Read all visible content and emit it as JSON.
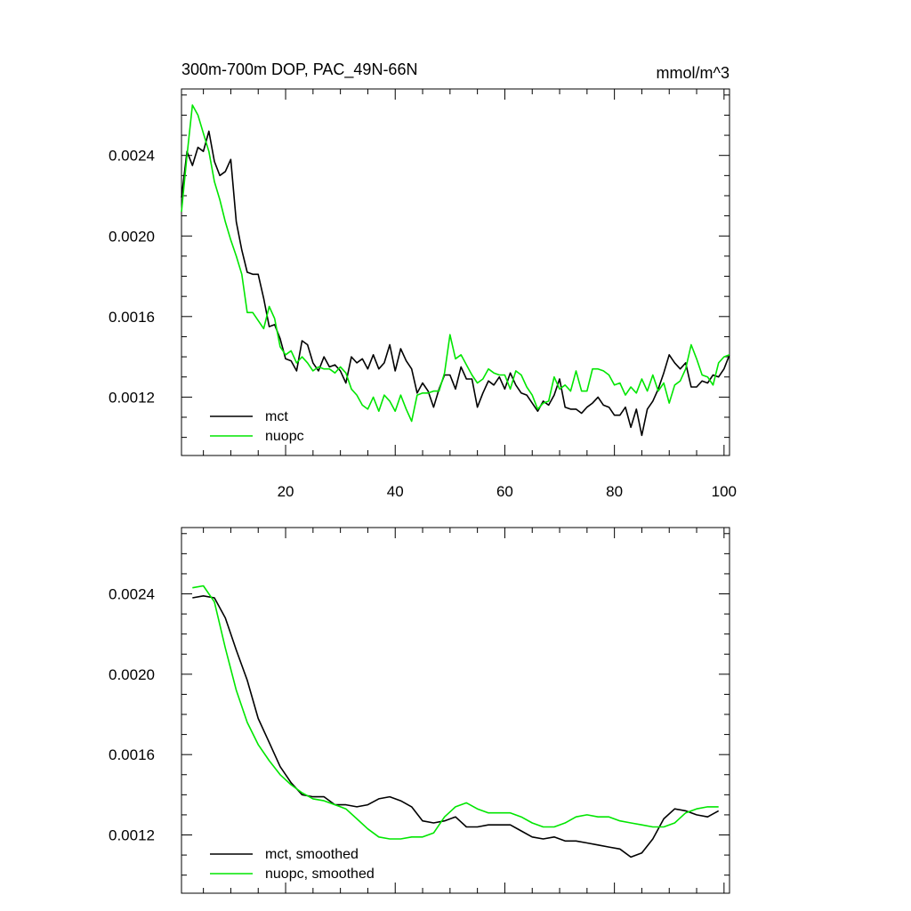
{
  "colors": {
    "mct": "#000000",
    "nuopc": "#00e600",
    "axis": "#000000"
  },
  "chart_data": [
    {
      "type": "line",
      "title": "300m-700m DOP, PAC_49N-66N",
      "units": "mmol/m^3",
      "xlim": [
        1,
        101
      ],
      "ylim": [
        0.00091,
        0.00273
      ],
      "xticks": [
        20,
        40,
        60,
        80,
        100
      ],
      "xtick_labels": [
        "20",
        "40",
        "60",
        "80",
        "100"
      ],
      "yticks": [
        0.0012,
        0.0016,
        0.002,
        0.0024
      ],
      "ytick_labels": [
        "0.0012",
        "0.0016",
        "0.0020",
        "0.0024"
      ],
      "legend": {
        "position": "lower-left",
        "entries": [
          "mct",
          "nuopc"
        ]
      },
      "series": [
        {
          "name": "mct",
          "color": "#000000",
          "x": [
            1,
            2,
            3,
            4,
            5,
            6,
            7,
            8,
            9,
            10,
            11,
            12,
            13,
            14,
            15,
            16,
            17,
            18,
            19,
            20,
            21,
            22,
            23,
            24,
            25,
            26,
            27,
            28,
            29,
            30,
            31,
            32,
            33,
            34,
            35,
            36,
            37,
            38,
            39,
            40,
            41,
            42,
            43,
            44,
            45,
            46,
            47,
            48,
            49,
            50,
            51,
            52,
            53,
            54,
            55,
            56,
            57,
            58,
            59,
            60,
            61,
            62,
            63,
            64,
            65,
            66,
            67,
            68,
            69,
            70,
            71,
            72,
            73,
            74,
            75,
            76,
            77,
            78,
            79,
            80,
            81,
            82,
            83,
            84,
            85,
            86,
            87,
            88,
            89,
            90,
            91,
            92,
            93,
            94,
            95,
            96,
            97,
            98,
            99,
            100,
            101
          ],
          "values": [
            0.00219,
            0.00242,
            0.00235,
            0.00244,
            0.00242,
            0.00252,
            0.00237,
            0.0023,
            0.00232,
            0.00238,
            0.00207,
            0.00193,
            0.00182,
            0.00181,
            0.00181,
            0.00169,
            0.00155,
            0.00156,
            0.00149,
            0.00139,
            0.00138,
            0.00133,
            0.00148,
            0.00146,
            0.00137,
            0.00133,
            0.0014,
            0.00135,
            0.00136,
            0.00133,
            0.00127,
            0.0014,
            0.00137,
            0.00139,
            0.00134,
            0.00141,
            0.00134,
            0.00137,
            0.00146,
            0.00133,
            0.00144,
            0.00138,
            0.00134,
            0.00122,
            0.00127,
            0.00123,
            0.00115,
            0.00124,
            0.00131,
            0.00131,
            0.00124,
            0.00135,
            0.00129,
            0.00129,
            0.00115,
            0.00122,
            0.00128,
            0.00126,
            0.0013,
            0.00124,
            0.00132,
            0.00126,
            0.00122,
            0.00121,
            0.00117,
            0.00113,
            0.00118,
            0.00116,
            0.00121,
            0.00129,
            0.00115,
            0.00114,
            0.00114,
            0.00112,
            0.00115,
            0.00117,
            0.0012,
            0.00116,
            0.00115,
            0.00111,
            0.00111,
            0.00115,
            0.00105,
            0.00114,
            0.00101,
            0.00114,
            0.00118,
            0.00124,
            0.00132,
            0.00141,
            0.00137,
            0.00134,
            0.00137,
            0.00125,
            0.00125,
            0.00128,
            0.00127,
            0.00131,
            0.0013,
            0.00134,
            0.00141
          ]
        },
        {
          "name": "nuopc",
          "color": "#00e600",
          "x": [
            1,
            2,
            3,
            4,
            5,
            6,
            7,
            8,
            9,
            10,
            11,
            12,
            13,
            14,
            15,
            16,
            17,
            18,
            19,
            20,
            21,
            22,
            23,
            24,
            25,
            26,
            27,
            28,
            29,
            30,
            31,
            32,
            33,
            34,
            35,
            36,
            37,
            38,
            39,
            40,
            41,
            42,
            43,
            44,
            45,
            46,
            47,
            48,
            49,
            50,
            51,
            52,
            53,
            54,
            55,
            56,
            57,
            58,
            59,
            60,
            61,
            62,
            63,
            64,
            65,
            66,
            67,
            68,
            69,
            70,
            71,
            72,
            73,
            74,
            75,
            76,
            77,
            78,
            79,
            80,
            81,
            82,
            83,
            84,
            85,
            86,
            87,
            88,
            89,
            90,
            91,
            92,
            93,
            94,
            95,
            96,
            97,
            98,
            99,
            100,
            101
          ],
          "values": [
            0.00212,
            0.0024,
            0.00265,
            0.0026,
            0.00251,
            0.00242,
            0.00227,
            0.00218,
            0.00207,
            0.00198,
            0.0019,
            0.00181,
            0.00162,
            0.00162,
            0.00158,
            0.00154,
            0.00165,
            0.00159,
            0.00145,
            0.00141,
            0.00143,
            0.00137,
            0.0014,
            0.00137,
            0.00133,
            0.00135,
            0.00134,
            0.00134,
            0.00132,
            0.00135,
            0.00132,
            0.00124,
            0.00121,
            0.00116,
            0.00114,
            0.0012,
            0.00113,
            0.00121,
            0.00118,
            0.00113,
            0.00121,
            0.00114,
            0.00108,
            0.00121,
            0.00122,
            0.00122,
            0.00123,
            0.00123,
            0.00132,
            0.00151,
            0.00139,
            0.00141,
            0.00136,
            0.00131,
            0.00127,
            0.00129,
            0.00134,
            0.00132,
            0.00131,
            0.00131,
            0.00124,
            0.00133,
            0.00131,
            0.00125,
            0.00121,
            0.00114,
            0.00117,
            0.00118,
            0.0013,
            0.00124,
            0.00126,
            0.00123,
            0.00133,
            0.00123,
            0.00123,
            0.00134,
            0.00134,
            0.00133,
            0.00131,
            0.00126,
            0.00127,
            0.00121,
            0.00125,
            0.00122,
            0.00129,
            0.00123,
            0.00131,
            0.00123,
            0.00127,
            0.00117,
            0.00126,
            0.00128,
            0.00134,
            0.00146,
            0.00139,
            0.00131,
            0.0013,
            0.00126,
            0.00137,
            0.0014,
            0.00141
          ]
        }
      ]
    },
    {
      "type": "line",
      "title": "",
      "xlim": [
        1,
        101
      ],
      "ylim": [
        0.00091,
        0.00273
      ],
      "xticks": [
        20,
        40,
        60,
        80,
        100
      ],
      "xtick_labels": [],
      "yticks": [
        0.0012,
        0.0016,
        0.002,
        0.0024
      ],
      "ytick_labels": [
        "0.0012",
        "0.0016",
        "0.0020",
        "0.0024"
      ],
      "legend": {
        "position": "lower-left",
        "entries": [
          "mct, smoothed",
          "nuopc, smoothed"
        ]
      },
      "series": [
        {
          "name": "mct, smoothed",
          "color": "#000000",
          "x": [
            3,
            5,
            7,
            9,
            11,
            13,
            15,
            17,
            19,
            21,
            23,
            25,
            27,
            29,
            31,
            33,
            35,
            37,
            39,
            41,
            43,
            45,
            47,
            49,
            51,
            53,
            55,
            57,
            59,
            61,
            63,
            65,
            67,
            69,
            71,
            73,
            75,
            77,
            79,
            81,
            83,
            85,
            87,
            89,
            91,
            93,
            95,
            97,
            99
          ],
          "values": [
            0.00238,
            0.00239,
            0.00238,
            0.00228,
            0.00212,
            0.00197,
            0.00178,
            0.00166,
            0.00154,
            0.00146,
            0.0014,
            0.00139,
            0.00139,
            0.00135,
            0.00135,
            0.00134,
            0.00135,
            0.00138,
            0.00139,
            0.00137,
            0.00134,
            0.00127,
            0.00126,
            0.00127,
            0.00129,
            0.00124,
            0.00124,
            0.00125,
            0.00125,
            0.00125,
            0.00122,
            0.00119,
            0.00118,
            0.00119,
            0.00117,
            0.00117,
            0.00116,
            0.00115,
            0.00114,
            0.00113,
            0.00109,
            0.00111,
            0.00118,
            0.00128,
            0.00133,
            0.00132,
            0.0013,
            0.00129,
            0.00132
          ]
        },
        {
          "name": "nuopc, smoothed",
          "color": "#00e600",
          "x": [
            3,
            5,
            7,
            9,
            11,
            13,
            15,
            17,
            19,
            21,
            23,
            25,
            27,
            29,
            31,
            33,
            35,
            37,
            39,
            41,
            43,
            45,
            47,
            49,
            51,
            53,
            55,
            57,
            59,
            61,
            63,
            65,
            67,
            69,
            71,
            73,
            75,
            77,
            79,
            81,
            83,
            85,
            87,
            89,
            91,
            93,
            95,
            97,
            99
          ],
          "values": [
            0.00243,
            0.00244,
            0.00236,
            0.00213,
            0.00192,
            0.00176,
            0.00165,
            0.00157,
            0.0015,
            0.00145,
            0.00141,
            0.00138,
            0.00137,
            0.00135,
            0.00133,
            0.00128,
            0.00123,
            0.00119,
            0.00118,
            0.00118,
            0.00119,
            0.00119,
            0.00121,
            0.00129,
            0.00134,
            0.00136,
            0.00133,
            0.00131,
            0.00131,
            0.00131,
            0.00129,
            0.00126,
            0.00124,
            0.00124,
            0.00126,
            0.00129,
            0.0013,
            0.00129,
            0.00129,
            0.00127,
            0.00126,
            0.00125,
            0.00124,
            0.00124,
            0.00126,
            0.00131,
            0.00133,
            0.00134,
            0.00134
          ]
        }
      ]
    }
  ]
}
